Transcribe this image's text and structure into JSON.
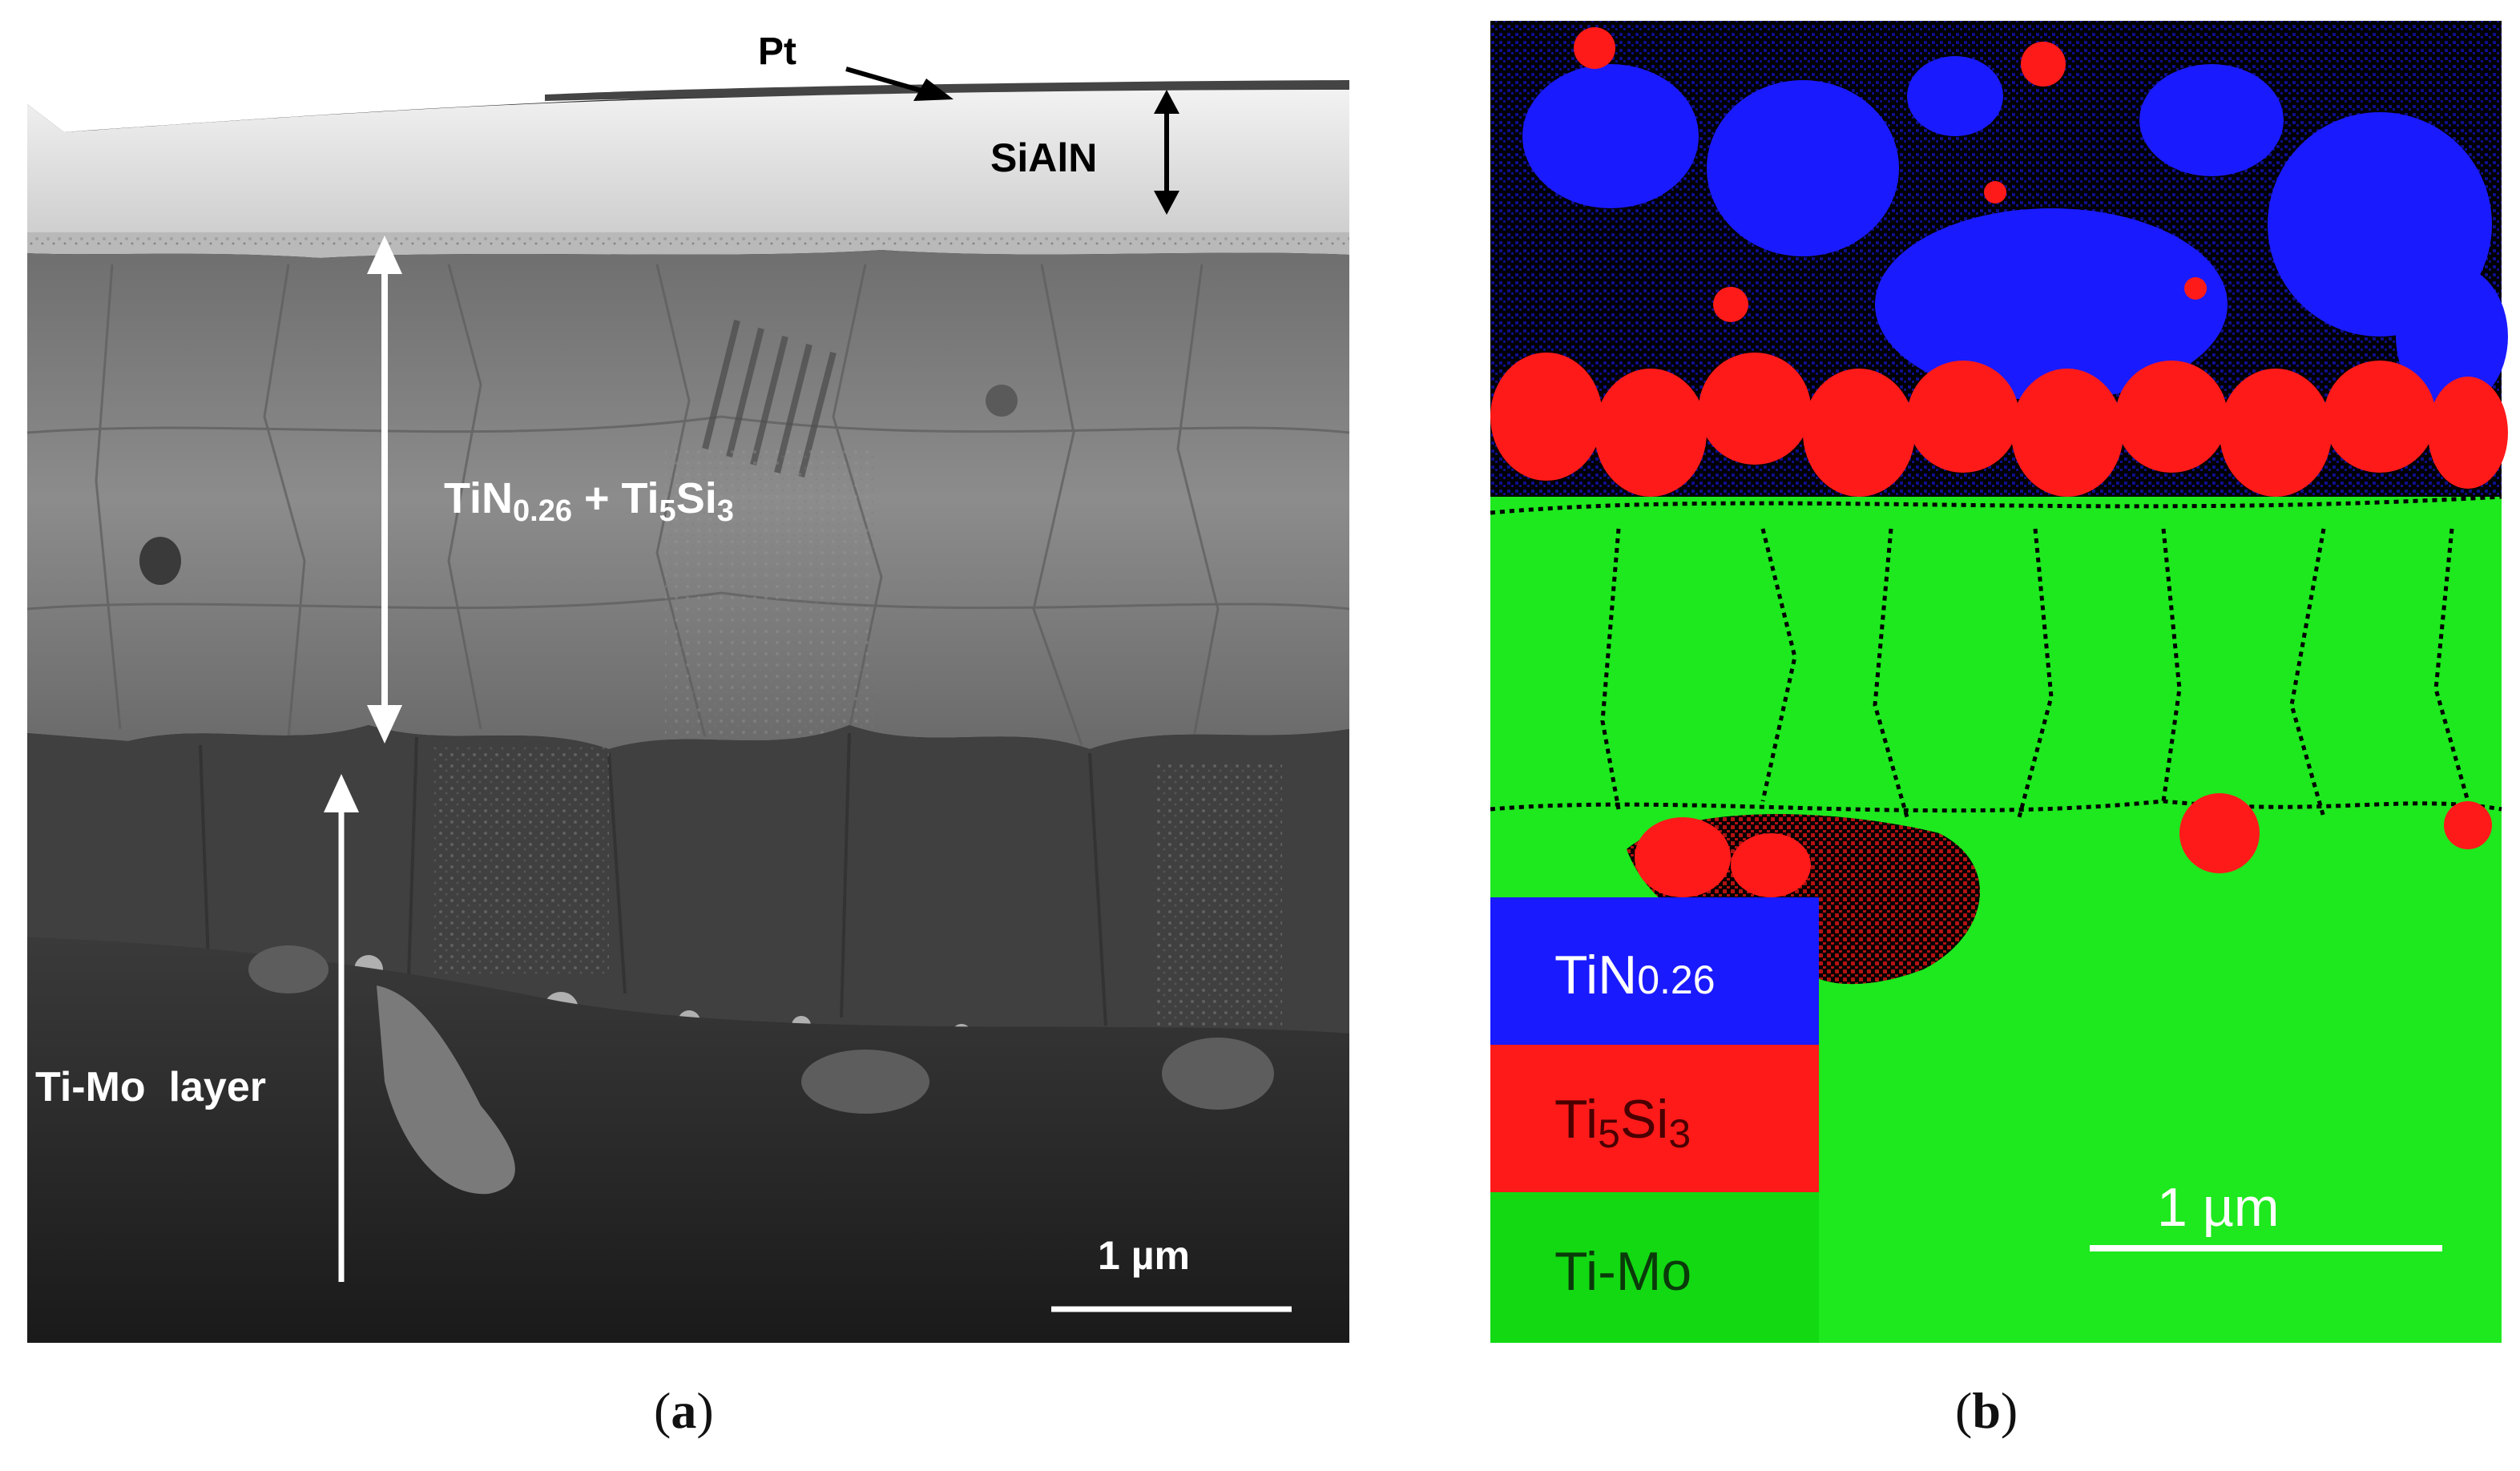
{
  "panel_a": {
    "label_prefix": "(",
    "label_letter": "a",
    "label_suffix": ")",
    "annotations": {
      "pt": "Pt",
      "sialn": "SiAlN",
      "tin_main": "TiN",
      "tin_sub": "0.26",
      "plus": " + Ti",
      "ti5": "5",
      "si": "Si",
      "si3": "3",
      "timo_layer": "Ti-Mo  layer"
    },
    "scale_bar": "1 µm"
  },
  "panel_b": {
    "label_prefix": "(",
    "label_letter": "b",
    "label_suffix": ")",
    "legend": [
      {
        "main": "TiN",
        "sub": "0.26",
        "color": "#1a1aff"
      },
      {
        "main": "Ti",
        "sub": "5",
        "main2": "Si",
        "sub2": "3",
        "color": "#ff1a1a"
      },
      {
        "main": "Ti-Mo",
        "color": "#12d912"
      }
    ],
    "scale_bar": "1 µm"
  },
  "colors": {
    "tin": "#1a1aff",
    "ti5si3": "#ff1a1a",
    "timo": "#1ee81e",
    "boundary": "#000000"
  }
}
